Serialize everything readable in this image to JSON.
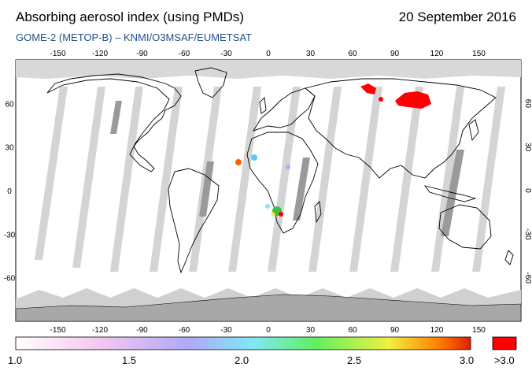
{
  "header": {
    "title": "Absorbing aerosol index (using PMDs)",
    "date": "20 September 2016",
    "subtitle": "GOME-2 (METOP-B)  –  KNMI/O3MSAF/EUMETSAT"
  },
  "map": {
    "lon_ticks": [
      "-150",
      "-120",
      "-90",
      "-60",
      "-30",
      "0",
      "30",
      "60",
      "90",
      "120",
      "150"
    ],
    "lat_ticks": [
      "60",
      "30",
      "0",
      "-30",
      "-60"
    ],
    "colors": {
      "ocean": "#ffffff",
      "land_outline": "#000000",
      "no_data_gray": "#d0d0d0",
      "polar_gray": "#a8a8a8",
      "high_aerosol": "#ff0000"
    }
  },
  "legend": {
    "labels": [
      "1.0",
      "1.5",
      "2.0",
      "2.5",
      "3.0"
    ],
    "overflow_label": ">3.0",
    "gradient_colors": [
      "#ffffff",
      "#f5c8f0",
      "#b0a8f8",
      "#80e8f8",
      "#60f060",
      "#f0f040",
      "#ff8000",
      "#e02000"
    ],
    "overflow_color": "#ff0000"
  }
}
